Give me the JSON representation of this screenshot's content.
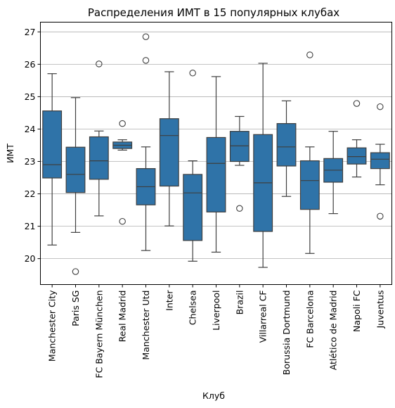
{
  "chart_data": {
    "type": "boxplot",
    "title": "Распределения ИМТ в 15 популярных клубах",
    "xlabel": "Клуб",
    "ylabel": "ИМТ",
    "ylim": [
      19.2,
      27.3
    ],
    "yticks": [
      20,
      21,
      22,
      23,
      24,
      25,
      26,
      27
    ],
    "grid": "horizontal",
    "box_color": "#2f73a8",
    "categories": [
      "Manchester City",
      "Paris SG",
      "FC Bayern München",
      "Real Madrid",
      "Manchester Utd",
      "Inter",
      "Chelsea",
      "Liverpool",
      "Brazil",
      "Villarreal CF",
      "Borussia Dortmund",
      "FC Barcelona",
      "Atlético de Madrid",
      "Napoli FC",
      "Juventus"
    ],
    "boxes": [
      {
        "whislo": 20.42,
        "q1": 22.49,
        "med": 22.9,
        "q3": 24.56,
        "whishi": 25.71,
        "fliers": []
      },
      {
        "whislo": 20.81,
        "q1": 22.04,
        "med": 22.6,
        "q3": 23.44,
        "whishi": 24.97,
        "fliers": [
          19.6
        ]
      },
      {
        "whislo": 21.32,
        "q1": 22.45,
        "med": 23.02,
        "q3": 23.76,
        "whishi": 23.94,
        "fliers": [
          26.01
        ]
      },
      {
        "whislo": 23.35,
        "q1": 23.4,
        "med": 23.5,
        "q3": 23.6,
        "whishi": 23.67,
        "fliers": [
          24.17,
          21.15
        ]
      },
      {
        "whislo": 20.25,
        "q1": 21.66,
        "med": 22.22,
        "q3": 22.78,
        "whishi": 23.45,
        "fliers": [
          26.12,
          26.85
        ]
      },
      {
        "whislo": 21.01,
        "q1": 22.24,
        "med": 23.8,
        "q3": 24.32,
        "whishi": 25.77,
        "fliers": []
      },
      {
        "whislo": 19.92,
        "q1": 20.56,
        "med": 22.03,
        "q3": 22.6,
        "whishi": 23.02,
        "fliers": [
          25.73
        ]
      },
      {
        "whislo": 20.2,
        "q1": 21.44,
        "med": 22.94,
        "q3": 23.74,
        "whishi": 25.62,
        "fliers": []
      },
      {
        "whislo": 22.88,
        "q1": 23.0,
        "med": 23.48,
        "q3": 23.93,
        "whishi": 24.39,
        "fliers": [
          21.55
        ]
      },
      {
        "whislo": 19.73,
        "q1": 20.84,
        "med": 22.34,
        "q3": 23.83,
        "whishi": 26.03,
        "fliers": []
      },
      {
        "whislo": 21.92,
        "q1": 22.86,
        "med": 23.45,
        "q3": 24.17,
        "whishi": 24.87,
        "fliers": []
      },
      {
        "whislo": 20.16,
        "q1": 21.52,
        "med": 22.41,
        "q3": 23.02,
        "whishi": 23.45,
        "fliers": [
          26.29
        ]
      },
      {
        "whislo": 21.39,
        "q1": 22.36,
        "med": 22.73,
        "q3": 23.09,
        "whishi": 23.93,
        "fliers": []
      },
      {
        "whislo": 22.52,
        "q1": 22.92,
        "med": 23.15,
        "q3": 23.42,
        "whishi": 23.67,
        "fliers": [
          24.79
        ]
      },
      {
        "whislo": 22.28,
        "q1": 22.78,
        "med": 23.07,
        "q3": 23.27,
        "whishi": 23.53,
        "fliers": [
          24.69,
          21.31
        ]
      }
    ]
  }
}
